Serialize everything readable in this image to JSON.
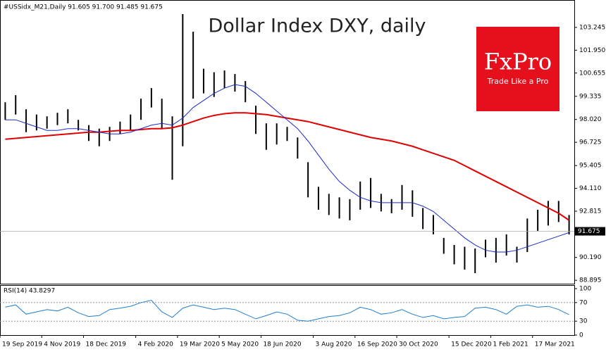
{
  "chart_data": {
    "type": "ohlc",
    "header": "#USSidx_M21,Daily  91.605 91.700 91.485 91.675",
    "title": "Dollar Index DXY, daily",
    "logo": {
      "name": "FxPro",
      "tagline": "Trade Like a Pro",
      "color": "#e5101c"
    },
    "categories": [
      "19 Sep 2019",
      null,
      null,
      null,
      "4 Nov 2019",
      null,
      null,
      null,
      "18 Dec 2019",
      null,
      null,
      null,
      null,
      "4 Feb 2020",
      null,
      null,
      null,
      "19 Mar 2020",
      null,
      null,
      null,
      "5 May 2020",
      null,
      null,
      null,
      "18 Jun 2020",
      null,
      null,
      null,
      null,
      "3 Aug 2020",
      null,
      null,
      null,
      "16 Sep 2020",
      null,
      null,
      null,
      "30 Oct 2020",
      null,
      null,
      null,
      null,
      "15 Dec 2020",
      null,
      null,
      null,
      "1 Feb 2021",
      null,
      null,
      null,
      "17 Mar 2021",
      null,
      null,
      null
    ],
    "high": [
      99.0,
      99.4,
      98.6,
      98.3,
      98.2,
      98.4,
      98.6,
      98.0,
      97.7,
      97.5,
      97.6,
      97.9,
      98.3,
      99.2,
      99.8,
      99.2,
      98.2,
      104.0,
      103.0,
      100.9,
      100.7,
      100.8,
      100.6,
      100.2,
      98.8,
      97.8,
      97.8,
      97.6,
      97.0,
      95.6,
      94.2,
      93.8,
      93.6,
      93.5,
      94.5,
      94.7,
      93.8,
      93.5,
      94.3,
      94.0,
      93.0,
      92.6,
      91.3,
      90.9,
      90.8,
      90.7,
      91.2,
      91.3,
      91.5,
      90.8,
      92.4,
      92.9,
      93.4,
      93.4,
      92.6
    ],
    "low": [
      98.0,
      98.3,
      97.3,
      97.4,
      97.5,
      97.7,
      97.8,
      97.4,
      96.8,
      96.5,
      96.8,
      97.2,
      97.4,
      98.0,
      98.7,
      97.5,
      94.6,
      96.5,
      99.2,
      99.5,
      99.3,
      99.8,
      99.6,
      99.0,
      97.2,
      96.3,
      96.6,
      96.8,
      95.8,
      93.6,
      92.9,
      92.6,
      92.4,
      92.3,
      92.9,
      93.0,
      92.8,
      92.7,
      92.9,
      92.5,
      91.8,
      91.5,
      90.4,
      89.8,
      89.5,
      89.3,
      90.2,
      89.9,
      90.3,
      89.9,
      90.5,
      91.7,
      92.0,
      92.2,
      91.5
    ],
    "color": "#000000",
    "moving_averages": [
      {
        "color": "#e00000",
        "values": [
          96.9,
          96.95,
          97.0,
          97.05,
          97.1,
          97.15,
          97.2,
          97.25,
          97.3,
          97.3,
          97.35,
          97.4,
          97.4,
          97.45,
          97.5,
          97.5,
          97.55,
          97.7,
          97.9,
          98.1,
          98.25,
          98.35,
          98.4,
          98.4,
          98.35,
          98.3,
          98.2,
          98.1,
          98.0,
          97.9,
          97.75,
          97.6,
          97.45,
          97.3,
          97.15,
          97.0,
          96.9,
          96.8,
          96.65,
          96.5,
          96.3,
          96.1,
          95.9,
          95.7,
          95.4,
          95.1,
          94.8,
          94.5,
          94.2,
          93.9,
          93.6,
          93.3,
          93.0,
          92.7,
          92.3
        ]
      },
      {
        "color": "#1c2ac8",
        "values": [
          98.0,
          98.0,
          97.8,
          97.6,
          97.4,
          97.4,
          97.5,
          97.5,
          97.4,
          97.3,
          97.2,
          97.2,
          97.3,
          97.5,
          97.7,
          97.8,
          97.7,
          98.1,
          98.7,
          99.1,
          99.5,
          99.8,
          100.0,
          99.9,
          99.5,
          99.0,
          98.5,
          98.0,
          97.5,
          96.8,
          96.0,
          95.2,
          94.5,
          94.0,
          93.6,
          93.4,
          93.3,
          93.3,
          93.3,
          93.3,
          93.1,
          92.8,
          92.3,
          91.8,
          91.3,
          90.9,
          90.6,
          90.5,
          90.5,
          90.6,
          90.8,
          91.0,
          91.2,
          91.4,
          91.6
        ]
      }
    ],
    "last_price": 91.675,
    "ylim": [
      88.7,
      104.76
    ],
    "yticks": [
      103.245,
      {
        "value": 101.95,
        "label": "101.950"
      },
      100.655,
      99.335,
      {
        "value": 98.02,
        "label": "98.020"
      },
      96.725,
      95.405,
      {
        "value": 94.11,
        "label": "94.110"
      },
      92.815,
      {
        "value": 90.19,
        "label": "90.190"
      },
      88.895
    ],
    "indicator": {
      "label": "RSI(14) 43.8297",
      "color": "#1e7fd0",
      "values": [
        60,
        65,
        45,
        50,
        55,
        52,
        60,
        48,
        40,
        42,
        55,
        58,
        62,
        70,
        75,
        50,
        38,
        58,
        65,
        60,
        55,
        58,
        55,
        45,
        35,
        42,
        50,
        45,
        32,
        30,
        35,
        40,
        42,
        48,
        60,
        55,
        45,
        48,
        55,
        45,
        38,
        42,
        35,
        38,
        40,
        58,
        60,
        55,
        45,
        62,
        65,
        60,
        62,
        55,
        44
      ],
      "ylim": [
        0,
        100
      ],
      "yticks": [
        100,
        70,
        30,
        0
      ]
    }
  }
}
